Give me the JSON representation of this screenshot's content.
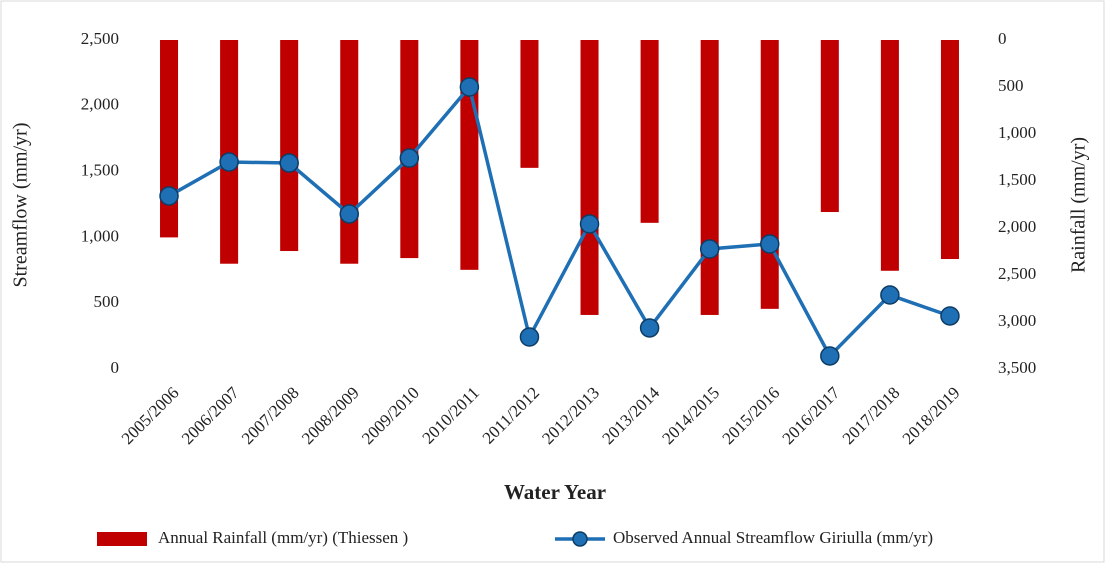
{
  "chart_data": {
    "type": "bar-line",
    "x_label": "Water Year",
    "y_label": "Streamflow (mm/yr)",
    "y2_label": "Rainfall (mm/yr)",
    "categories": [
      "2005/2006",
      "2006/2007",
      "2007/2008",
      "2008/2009",
      "2009/2010",
      "2010/2011",
      "2011/2012",
      "2012/2013",
      "2013/2014",
      "2014/2015",
      "2015/2016",
      "2016/2017",
      "2017/2018",
      "2018/2019"
    ],
    "series": [
      {
        "name": "Annual Rainfall  (mm/yr) (Thiessen )",
        "type": "bar",
        "axis": "y2",
        "color": "#c00000",
        "values": [
          2100,
          2380,
          2245,
          2380,
          2320,
          2445,
          1360,
          2925,
          1945,
          2925,
          2860,
          1830,
          2455,
          2330
        ]
      },
      {
        "name": "Observed Annual Streamflow  Giriulla (mm/yr)",
        "type": "line",
        "color": "#1f6fb5",
        "values": [
          1315,
          1573,
          1565,
          1178,
          1603,
          2143,
          243,
          1102,
          312,
          912,
          950,
          99,
          562,
          403
        ]
      }
    ],
    "ylim": [
      0,
      2500
    ],
    "yticks": [
      0,
      500,
      {
        "value": 1000,
        "label": "1,000"
      },
      {
        "value": 1500,
        "label": "1,500"
      },
      {
        "value": 2000,
        "label": "2,000"
      },
      {
        "value": 2500,
        "label": "2,500"
      }
    ],
    "y2lim": [
      0,
      3500
    ],
    "y2_reversed": true,
    "y2ticks": [
      0,
      500,
      {
        "value": 1000,
        "label": "1,000"
      },
      {
        "value": 1500,
        "label": "1,500"
      },
      {
        "value": 2000,
        "label": "2,000"
      },
      {
        "value": 2500,
        "label": "2,500"
      },
      {
        "value": 3000,
        "label": "3,000"
      },
      {
        "value": 3500,
        "label": "3,500"
      }
    ],
    "grid": false,
    "legend": "bottom"
  }
}
